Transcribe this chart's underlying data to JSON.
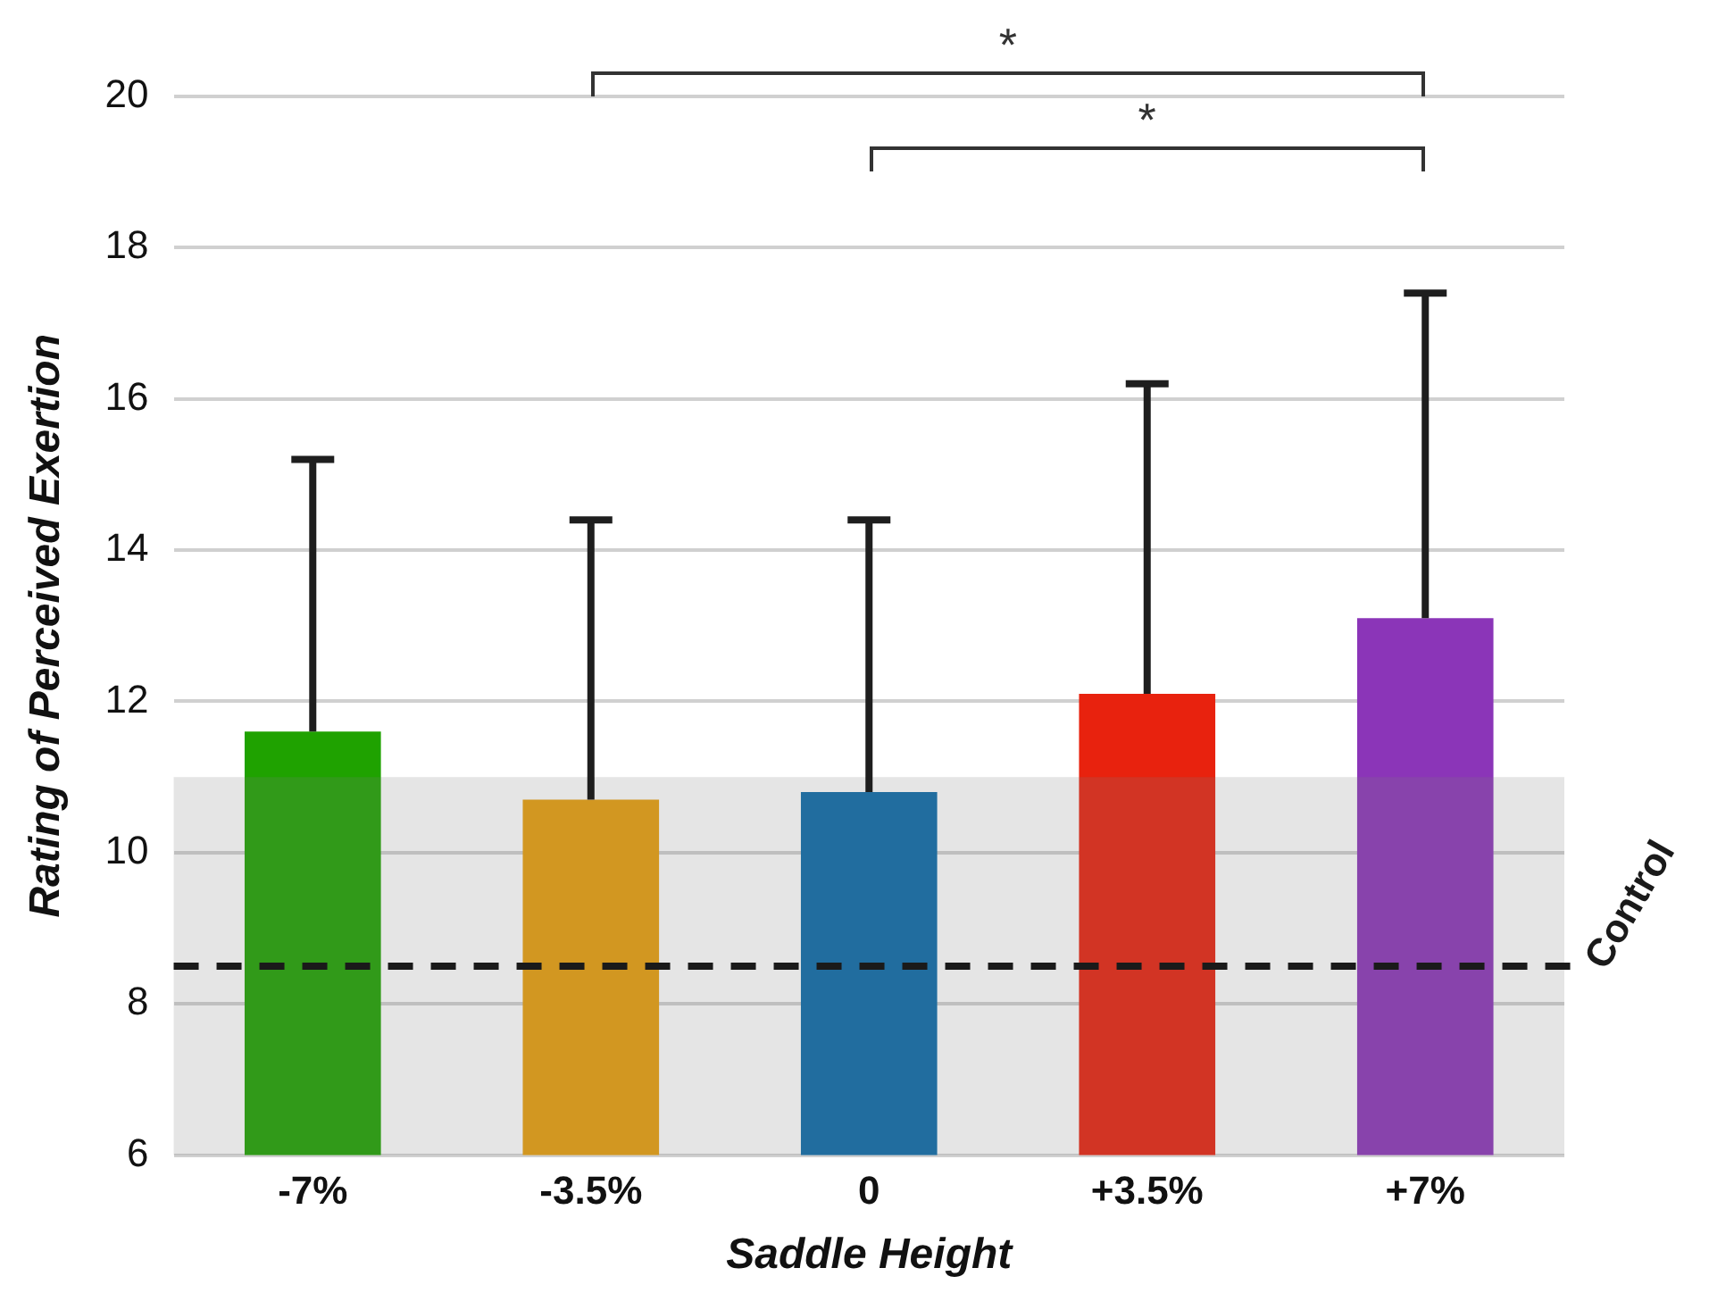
{
  "chart_data": {
    "type": "bar",
    "xlabel": "Saddle Height",
    "ylabel": "Rating of Perceived Exertion",
    "categories": [
      "-7%",
      "-3.5%",
      "0",
      "+3.5%",
      "+7%"
    ],
    "values": [
      11.6,
      10.7,
      10.8,
      12.1,
      13.1
    ],
    "colors": [
      "#1fa200",
      "#e89e0a",
      "#0a6aa8",
      "#e8220e",
      "#8b35b8"
    ],
    "errors": [
      [
        11.6,
        15.2
      ],
      [
        10.7,
        14.4
      ],
      [
        10.8,
        14.4
      ],
      [
        12.1,
        16.2
      ],
      [
        13.1,
        17.4
      ]
    ],
    "ylim": [
      6,
      20
    ],
    "yticks": [
      6,
      8,
      10,
      12,
      14,
      16,
      18,
      20
    ],
    "grid": "y",
    "legend": false,
    "ref_lines": [
      {
        "axis": "y",
        "value": 8.5,
        "label": "Control",
        "color": "#1a1a1a",
        "line_style": "dashed"
      }
    ],
    "bands": [
      {
        "axis": "y",
        "from": 6,
        "to": 11,
        "color": "#7f7f7f"
      }
    ],
    "annotations": [
      "*",
      "*"
    ]
  }
}
